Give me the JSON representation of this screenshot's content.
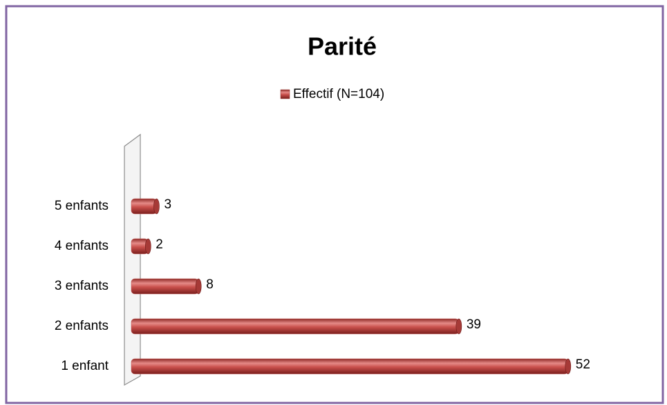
{
  "chart_data": {
    "type": "bar",
    "orientation": "horizontal",
    "title": "Parité",
    "categories": [
      "1 enfant",
      "2 enfants",
      "3 enfants",
      "4 enfants",
      "5 enfants"
    ],
    "series": [
      {
        "name": "Effectif (N=104)",
        "color": "#c0504d",
        "values": [
          52,
          39,
          8,
          2,
          3
        ]
      }
    ],
    "xlim": [
      0,
      60
    ],
    "legend": "top"
  }
}
